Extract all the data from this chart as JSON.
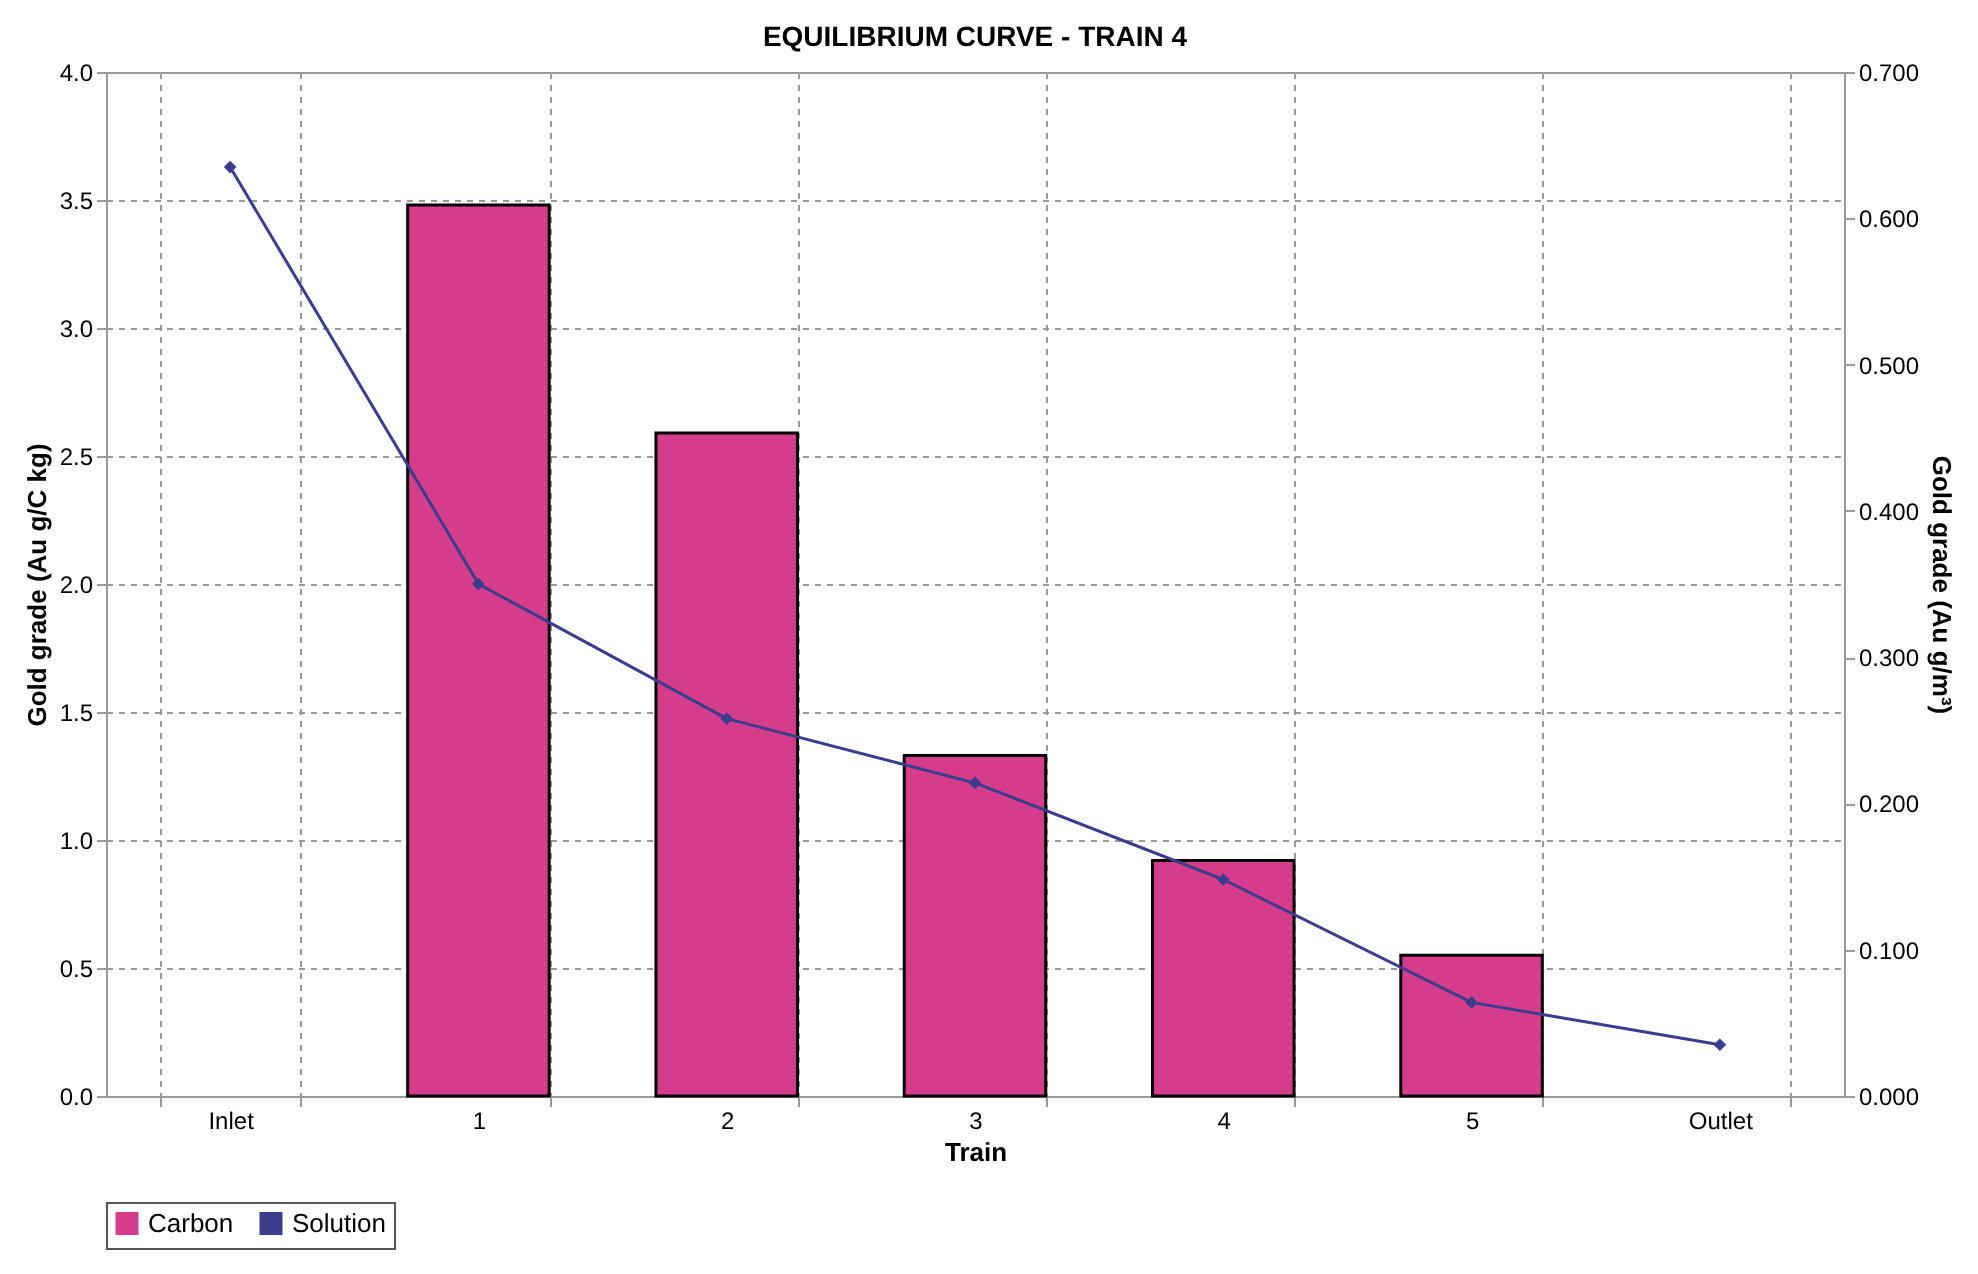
{
  "chart_data": {
    "type": "bar",
    "title": "EQUILIBRIUM CURVE - TRAIN 4",
    "xlabel": "Train",
    "ylabel": "Gold grade (Au g/C kg)",
    "y2label": "Gold grade (Au g/m³)",
    "categories": [
      "Inlet",
      "1",
      "2",
      "3",
      "4",
      "5",
      "Outlet"
    ],
    "series": [
      {
        "name": "Carbon",
        "color": "#d63c8c",
        "values": [
          null,
          3.48,
          2.59,
          1.33,
          0.92,
          0.55,
          null
        ]
      },
      {
        "name": "Solution",
        "type": "line",
        "axis": "y2",
        "color": "#3c3c8c",
        "marker": "diamond",
        "values": [
          0.635,
          0.35,
          0.258,
          0.214,
          0.148,
          0.064,
          0.035
        ]
      }
    ],
    "ylim": [
      0,
      4.0
    ],
    "yticks": [
      {
        "value": 0,
        "label": "0.0"
      },
      0.5,
      {
        "value": 1,
        "label": "1.0"
      },
      1.5,
      {
        "value": 2,
        "label": "2.0"
      },
      2.5,
      {
        "value": 3,
        "label": "3.0"
      },
      3.5,
      {
        "value": 4,
        "label": "4.0"
      }
    ],
    "y2lim": [
      0,
      0.7
    ],
    "y2ticks": [
      {
        "value": 0,
        "label": "0.000"
      },
      {
        "value": 0.1,
        "label": "0.100"
      },
      {
        "value": 0.2,
        "label": "0.200"
      },
      {
        "value": 0.3,
        "label": "0.300"
      },
      {
        "value": 0.4,
        "label": "0.400"
      },
      {
        "value": 0.5,
        "label": "0.500"
      },
      {
        "value": 0.6,
        "label": "0.600"
      },
      {
        "value": 0.7,
        "label": "0.700"
      }
    ],
    "grid": true,
    "legend": "bottom"
  }
}
